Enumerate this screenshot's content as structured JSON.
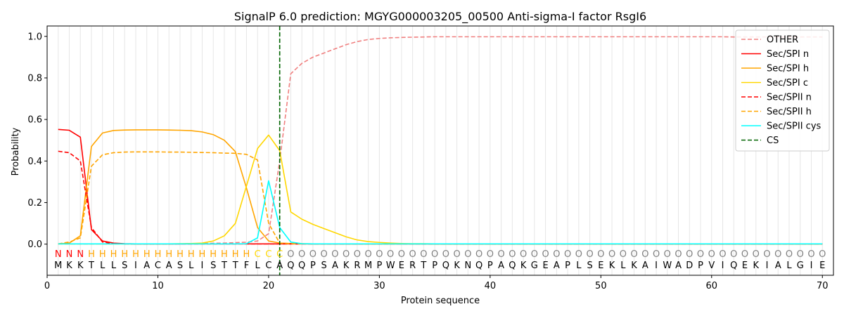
{
  "chart_data": {
    "type": "line",
    "title": "SignalP 6.0 prediction: MGYG000003205_00500 Anti-sigma-I factor RsgI6",
    "xlabel": "Protein sequence",
    "ylabel": "Probability",
    "xlim": [
      0,
      71
    ],
    "ylim": [
      -0.15,
      1.05
    ],
    "xticks": [
      0,
      10,
      20,
      30,
      40,
      50,
      60,
      70
    ],
    "yticks": [
      0.0,
      0.2,
      0.4,
      0.6,
      0.8,
      1.0
    ],
    "ytick_labels": [
      "0.0",
      "0.2",
      "0.4",
      "0.6",
      "0.8",
      "1.0"
    ],
    "grid": "vertical lines at each residue",
    "legend_position": "top-right",
    "sequence": [
      "M",
      "K",
      "K",
      "T",
      "L",
      "L",
      "S",
      "I",
      "A",
      "C",
      "A",
      "S",
      "L",
      "I",
      "S",
      "T",
      "T",
      "F",
      "L",
      "C",
      "A",
      "Q",
      "Q",
      "P",
      "S",
      "A",
      "K",
      "R",
      "M",
      "P",
      "W",
      "E",
      "R",
      "T",
      "P",
      "Q",
      "K",
      "N",
      "Q",
      "P",
      "A",
      "Q",
      "K",
      "G",
      "E",
      "A",
      "P",
      "L",
      "S",
      "E",
      "K",
      "L",
      "K",
      "A",
      "I",
      "W",
      "A",
      "D",
      "P",
      "V",
      "I",
      "Q",
      "E",
      "K",
      "I",
      "A",
      "L",
      "G",
      "I",
      "E"
    ],
    "regions": [
      "N",
      "N",
      "N",
      "H",
      "H",
      "H",
      "H",
      "H",
      "H",
      "H",
      "H",
      "H",
      "H",
      "H",
      "H",
      "H",
      "H",
      "H",
      "C",
      "C",
      "C",
      "O",
      "O",
      "O",
      "O",
      "O",
      "O",
      "O",
      "O",
      "O",
      "O",
      "O",
      "O",
      "O",
      "O",
      "O",
      "O",
      "O",
      "O",
      "O",
      "O",
      "O",
      "O",
      "O",
      "O",
      "O",
      "O",
      "O",
      "O",
      "O",
      "O",
      "O",
      "O",
      "O",
      "O",
      "O",
      "O",
      "O",
      "O",
      "O",
      "O",
      "O",
      "O",
      "O",
      "O",
      "O",
      "O",
      "O",
      "O",
      "O"
    ],
    "region_colors": {
      "N": "#ff0000",
      "H": "#ffa500",
      "C": "#ffd700",
      "O": "#808080"
    },
    "cleavage_site": 21,
    "series": [
      {
        "name": "OTHER",
        "color": "#f08080",
        "dash": "dashed",
        "values": [
          0.001,
          0.001,
          0.001,
          0.001,
          0.001,
          0.001,
          0.001,
          0.001,
          0.001,
          0.001,
          0.001,
          0.001,
          0.002,
          0.003,
          0.004,
          0.005,
          0.007,
          0.009,
          0.015,
          0.05,
          0.4,
          0.82,
          0.87,
          0.9,
          0.92,
          0.94,
          0.96,
          0.975,
          0.985,
          0.99,
          0.993,
          0.995,
          0.996,
          0.997,
          0.998,
          0.998,
          0.998,
          0.998,
          0.998,
          0.998,
          0.998,
          0.998,
          0.998,
          0.998,
          0.998,
          0.998,
          0.998,
          0.998,
          0.998,
          0.998,
          0.998,
          0.998,
          0.998,
          0.998,
          0.998,
          0.998,
          0.998,
          0.998,
          0.998,
          0.998,
          0.998,
          0.997,
          0.997,
          0.997,
          0.997,
          0.997,
          0.997,
          0.997,
          0.997,
          0.997
        ]
      },
      {
        "name": "Sec/SPI n",
        "color": "#ff0000",
        "dash": "solid",
        "values": [
          0.552,
          0.548,
          0.515,
          0.07,
          0.015,
          0.005,
          0.002,
          0.001,
          0.001,
          0.001,
          0.001,
          0.001,
          0.001,
          0.001,
          0.001,
          0.001,
          0.001,
          0.001,
          0.001,
          0.001,
          0.001,
          0.001,
          0.001,
          0.001,
          0.001,
          0.001,
          0.001,
          0.001,
          0.001,
          0.001,
          0.001,
          0.001,
          0.001,
          0.001,
          0.001,
          0.001,
          0.001,
          0.001,
          0.001,
          0.001,
          0.001,
          0.001,
          0.001,
          0.001,
          0.001,
          0.001,
          0.001,
          0.001,
          0.001,
          0.001,
          0.001,
          0.001,
          0.001,
          0.001,
          0.001,
          0.001,
          0.001,
          0.001,
          0.001,
          0.001,
          0.001,
          0.001,
          0.001,
          0.001,
          0.001,
          0.001,
          0.001,
          0.001,
          0.001,
          0.001
        ]
      },
      {
        "name": "Sec/SPI h",
        "color": "#ffa500",
        "dash": "solid",
        "values": [
          0.001,
          0.005,
          0.04,
          0.47,
          0.535,
          0.547,
          0.549,
          0.55,
          0.55,
          0.55,
          0.549,
          0.548,
          0.546,
          0.54,
          0.527,
          0.5,
          0.445,
          0.27,
          0.08,
          0.015,
          0.005,
          0.003,
          0.002,
          0.001,
          0.001,
          0.001,
          0.001,
          0.001,
          0.001,
          0.001,
          0.001,
          0.001,
          0.001,
          0.001,
          0.001,
          0.001,
          0.001,
          0.001,
          0.001,
          0.001,
          0.001,
          0.001,
          0.001,
          0.001,
          0.001,
          0.001,
          0.001,
          0.001,
          0.001,
          0.001,
          0.001,
          0.001,
          0.001,
          0.001,
          0.001,
          0.001,
          0.001,
          0.001,
          0.001,
          0.001,
          0.001,
          0.001,
          0.001,
          0.001,
          0.001,
          0.001,
          0.001,
          0.001,
          0.001,
          0.001
        ]
      },
      {
        "name": "Sec/SPI c",
        "color": "#ffd700",
        "dash": "solid",
        "values": [
          0.001,
          0.001,
          0.001,
          0.001,
          0.001,
          0.001,
          0.001,
          0.001,
          0.001,
          0.001,
          0.001,
          0.002,
          0.003,
          0.005,
          0.015,
          0.04,
          0.1,
          0.28,
          0.46,
          0.525,
          0.45,
          0.155,
          0.12,
          0.095,
          0.075,
          0.055,
          0.035,
          0.02,
          0.012,
          0.008,
          0.005,
          0.003,
          0.002,
          0.002,
          0.001,
          0.001,
          0.001,
          0.001,
          0.001,
          0.001,
          0.001,
          0.001,
          0.001,
          0.001,
          0.001,
          0.001,
          0.001,
          0.001,
          0.001,
          0.001,
          0.001,
          0.001,
          0.001,
          0.001,
          0.001,
          0.001,
          0.001,
          0.001,
          0.001,
          0.001,
          0.001,
          0.001,
          0.001,
          0.001,
          0.001,
          0.001,
          0.001,
          0.001,
          0.001,
          0.001
        ]
      },
      {
        "name": "Sec/SPII n",
        "color": "#ff0000",
        "dash": "dashed",
        "values": [
          0.447,
          0.44,
          0.4,
          0.08,
          0.01,
          0.003,
          0.001,
          0.001,
          0.001,
          0.001,
          0.001,
          0.001,
          0.001,
          0.001,
          0.001,
          0.001,
          0.001,
          0.001,
          0.001,
          0.001,
          0.001,
          0.001,
          0.001,
          0.001,
          0.001,
          0.001,
          0.001,
          0.001,
          0.001,
          0.001,
          0.001,
          0.001,
          0.001,
          0.001,
          0.001,
          0.001,
          0.001,
          0.001,
          0.001,
          0.001,
          0.001,
          0.001,
          0.001,
          0.001,
          0.001,
          0.001,
          0.001,
          0.001,
          0.001,
          0.001,
          0.001,
          0.001,
          0.001,
          0.001,
          0.001,
          0.001,
          0.001,
          0.001,
          0.001,
          0.001,
          0.001,
          0.001,
          0.001,
          0.001,
          0.001,
          0.001,
          0.001,
          0.001,
          0.001,
          0.001
        ]
      },
      {
        "name": "Sec/SPII h",
        "color": "#ffa500",
        "dash": "dashed",
        "values": [
          0.001,
          0.01,
          0.03,
          0.375,
          0.43,
          0.44,
          0.443,
          0.444,
          0.444,
          0.444,
          0.443,
          0.443,
          0.442,
          0.441,
          0.44,
          0.438,
          0.437,
          0.432,
          0.405,
          0.1,
          0.005,
          0.002,
          0.001,
          0.001,
          0.001,
          0.001,
          0.001,
          0.001,
          0.001,
          0.001,
          0.001,
          0.001,
          0.001,
          0.001,
          0.001,
          0.001,
          0.001,
          0.001,
          0.001,
          0.001,
          0.001,
          0.001,
          0.001,
          0.001,
          0.001,
          0.001,
          0.001,
          0.001,
          0.001,
          0.001,
          0.001,
          0.001,
          0.001,
          0.001,
          0.001,
          0.001,
          0.001,
          0.001,
          0.001,
          0.001,
          0.001,
          0.001,
          0.001,
          0.001,
          0.001,
          0.001,
          0.001,
          0.001,
          0.001,
          0.001
        ]
      },
      {
        "name": "Sec/SPII cys",
        "color": "#00ffff",
        "dash": "solid",
        "values": [
          0.001,
          0.001,
          0.001,
          0.001,
          0.001,
          0.001,
          0.001,
          0.001,
          0.001,
          0.001,
          0.001,
          0.001,
          0.001,
          0.001,
          0.001,
          0.001,
          0.001,
          0.002,
          0.03,
          0.305,
          0.08,
          0.01,
          0.002,
          0.001,
          0.001,
          0.001,
          0.001,
          0.001,
          0.001,
          0.001,
          0.001,
          0.001,
          0.001,
          0.001,
          0.001,
          0.001,
          0.001,
          0.001,
          0.001,
          0.001,
          0.001,
          0.001,
          0.001,
          0.001,
          0.001,
          0.001,
          0.001,
          0.001,
          0.001,
          0.001,
          0.001,
          0.001,
          0.001,
          0.001,
          0.001,
          0.001,
          0.001,
          0.001,
          0.001,
          0.001,
          0.001,
          0.001,
          0.001,
          0.001,
          0.001,
          0.001,
          0.001,
          0.001,
          0.001,
          0.001
        ]
      }
    ],
    "cs_legend": {
      "name": "CS",
      "color": "#006400",
      "dash": "dashed"
    }
  }
}
